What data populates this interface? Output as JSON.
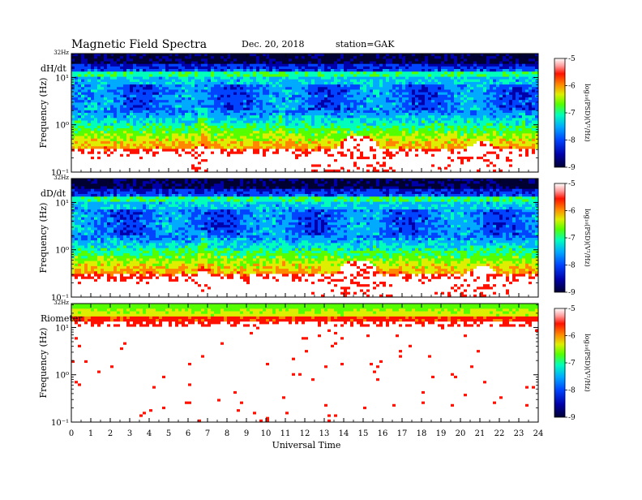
{
  "header": {
    "title": "Magnetic  Field  Spectra",
    "date": "Dec. 20, 2018",
    "station": "station=GAK"
  },
  "chart_data": {
    "type": "heatmap",
    "xlabel": "Universal Time",
    "xlim": [
      0,
      24
    ],
    "x_ticks": [
      "0",
      "1",
      "2",
      "3",
      "4",
      "5",
      "6",
      "7",
      "8",
      "9",
      "10",
      "11",
      "12",
      "13",
      "14",
      "15",
      "16",
      "17",
      "18",
      "19",
      "20",
      "21",
      "22",
      "23",
      "24"
    ],
    "panels": [
      {
        "name": "dH/dt",
        "ylabel": "Frequency  (Hz)",
        "y_scale": "log",
        "ylim_hz": [
          0.1,
          32
        ],
        "y_tick_labels": [
          {
            "value_hz": 32,
            "label": "32Hz"
          },
          {
            "value_hz": 10,
            "label": "10¹"
          },
          {
            "value_hz": 1,
            "label": "10⁰"
          },
          {
            "value_hz": 0.1,
            "label": "10⁻¹"
          }
        ],
        "colorbar": {
          "label": "log₁₀(PSD)(V²/Hz)",
          "range": [
            -9,
            -5
          ],
          "tick_labels": [
            "-5",
            "-6",
            "-7",
            "-8",
            "-9"
          ]
        }
      },
      {
        "name": "dD/dt",
        "ylabel": "Frequency  (Hz)",
        "y_scale": "log",
        "ylim_hz": [
          0.1,
          32
        ],
        "y_tick_labels": [
          {
            "value_hz": 32,
            "label": "32Hz"
          },
          {
            "value_hz": 10,
            "label": "10¹"
          },
          {
            "value_hz": 1,
            "label": "10⁰"
          },
          {
            "value_hz": 0.1,
            "label": "10⁻¹"
          }
        ],
        "colorbar": {
          "label": "log₁₀(PSD)(V²/Hz)",
          "range": [
            -9,
            -5
          ],
          "tick_labels": [
            "-5",
            "-6",
            "-7",
            "-8",
            "-9"
          ]
        }
      },
      {
        "name": "Riometer",
        "ylabel": "Frequency  (Hz)",
        "y_scale": "log",
        "ylim_hz": [
          0.1,
          32
        ],
        "y_tick_labels": [
          {
            "value_hz": 32,
            "label": "32Hz"
          },
          {
            "value_hz": 10,
            "label": "10¹"
          },
          {
            "value_hz": 1,
            "label": "10⁰"
          },
          {
            "value_hz": 0.1,
            "label": "10⁻¹"
          }
        ],
        "colorbar": {
          "label": "log₁₀(PSD)(V²/Hz)",
          "range": [
            -9,
            -5
          ],
          "tick_labels": [
            "-5",
            "-6",
            "-7",
            "-8",
            "-9"
          ]
        }
      }
    ],
    "colormap": [
      "#000033",
      "#0000aa",
      "#0044ff",
      "#00aaff",
      "#00ffbb",
      "#55ff00",
      "#ddee00",
      "#ff8800",
      "#ff1100",
      "#ffffff"
    ],
    "noise_bursts_ut": [
      6.6,
      6.9,
      10.8,
      3.3
    ]
  }
}
